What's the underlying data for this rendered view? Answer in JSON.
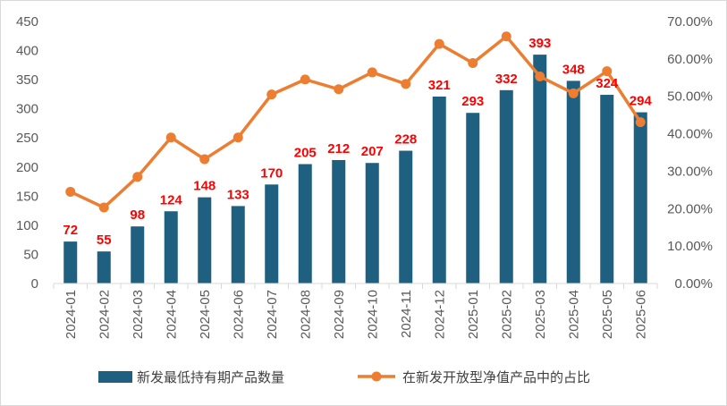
{
  "chart_data": {
    "type": "bar+line",
    "categories": [
      "2024-01",
      "2024-02",
      "2024-03",
      "2024-04",
      "2024-05",
      "2024-06",
      "2024-07",
      "2024-08",
      "2024-09",
      "2024-10",
      "2024-11",
      "2024-12",
      "2025-01",
      "2025-02",
      "2025-03",
      "2025-04",
      "2025-05",
      "2025-06"
    ],
    "series": [
      {
        "name": "新发最低持有期产品数量",
        "type": "bar",
        "axis": "left",
        "color": "#1f5f7f",
        "values": [
          72,
          55,
          98,
          124,
          148,
          133,
          170,
          205,
          212,
          207,
          228,
          321,
          293,
          332,
          393,
          348,
          324,
          294
        ],
        "labels": [
          "72",
          "55",
          "98",
          "124",
          "148",
          "133",
          "170",
          "205",
          "212",
          "207",
          "228",
          "321",
          "293",
          "332",
          "393",
          "348",
          "324",
          "294"
        ]
      },
      {
        "name": "在新发开放型净值产品中的占比",
        "type": "line",
        "axis": "right",
        "color": "#ed7d31",
        "values": [
          24.5,
          20.3,
          28.5,
          39,
          33.2,
          39,
          50.5,
          54.5,
          51.9,
          56.4,
          53.3,
          64,
          58.9,
          66,
          55.3,
          50.8,
          56.7,
          43.1
        ]
      }
    ],
    "y_left": {
      "min": 0,
      "max": 450,
      "ticks": [
        "0",
        "50",
        "100",
        "150",
        "200",
        "250",
        "300",
        "350",
        "400",
        "450"
      ]
    },
    "y_right": {
      "min": 0,
      "max": 70,
      "ticks": [
        "0.00%",
        "10.00%",
        "20.00%",
        "30.00%",
        "40.00%",
        "50.00%",
        "60.00%",
        "70.00%"
      ]
    },
    "label_color": "#ff0000",
    "legend_position": "bottom",
    "grid": false
  }
}
